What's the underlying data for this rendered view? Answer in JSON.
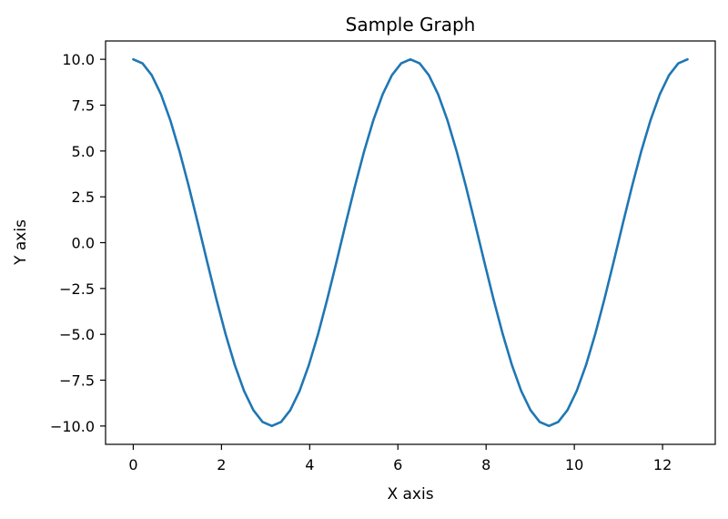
{
  "chart_data": {
    "type": "line",
    "title": "Sample Graph",
    "xlabel": "X axis",
    "ylabel": "Y axis",
    "xlim": [
      -0.628,
      13.195
    ],
    "ylim": [
      -11.0,
      11.0
    ],
    "x_ticks": [
      0,
      2,
      4,
      6,
      8,
      10,
      12
    ],
    "x_tick_labels": [
      "0",
      "2",
      "4",
      "6",
      "8",
      "10",
      "12"
    ],
    "y_ticks": [
      10.0,
      7.5,
      5.0,
      2.5,
      0.0,
      -2.5,
      -5.0,
      -7.5,
      -10.0
    ],
    "y_tick_labels": [
      "10.0",
      "7.5",
      "5.0",
      "2.5",
      "0.0",
      "−2.5",
      "−5.0",
      "−7.5",
      "−10.0"
    ],
    "grid": false,
    "series": [
      {
        "color": "#1f77b4",
        "function": "10*cos(x)",
        "x": [
          0.0,
          0.209,
          0.419,
          0.628,
          0.838,
          1.047,
          1.257,
          1.466,
          1.676,
          1.885,
          2.094,
          2.304,
          2.513,
          2.723,
          2.932,
          3.142,
          3.351,
          3.56,
          3.77,
          3.979,
          4.189,
          4.398,
          4.608,
          4.817,
          5.027,
          5.236,
          5.445,
          5.655,
          5.864,
          6.074,
          6.283,
          6.493,
          6.702,
          6.912,
          7.121,
          7.33,
          7.54,
          7.749,
          7.959,
          8.168,
          8.378,
          8.587,
          8.796,
          9.006,
          9.215,
          9.425,
          9.634,
          9.844,
          10.053,
          10.263,
          10.472,
          10.681,
          10.891,
          11.1,
          11.31,
          11.519,
          11.729,
          11.938,
          12.147,
          12.357,
          12.566
        ],
        "y": [
          10.0,
          9.781,
          9.135,
          8.09,
          6.691,
          5.0,
          3.09,
          1.045,
          -1.045,
          -3.09,
          -5.0,
          -6.691,
          -8.09,
          -9.135,
          -9.781,
          -10.0,
          -9.781,
          -9.135,
          -8.09,
          -6.691,
          -5.0,
          -3.09,
          -1.045,
          1.045,
          3.09,
          5.0,
          6.691,
          8.09,
          9.135,
          9.781,
          10.0,
          9.781,
          9.135,
          8.09,
          6.691,
          5.0,
          3.09,
          1.045,
          -1.045,
          -3.09,
          -5.0,
          -6.691,
          -8.09,
          -9.135,
          -9.781,
          -10.0,
          -9.781,
          -9.135,
          -8.09,
          -6.691,
          -5.0,
          -3.09,
          -1.045,
          1.045,
          3.09,
          5.0,
          6.691,
          8.09,
          9.135,
          9.781,
          10.0
        ]
      }
    ]
  }
}
